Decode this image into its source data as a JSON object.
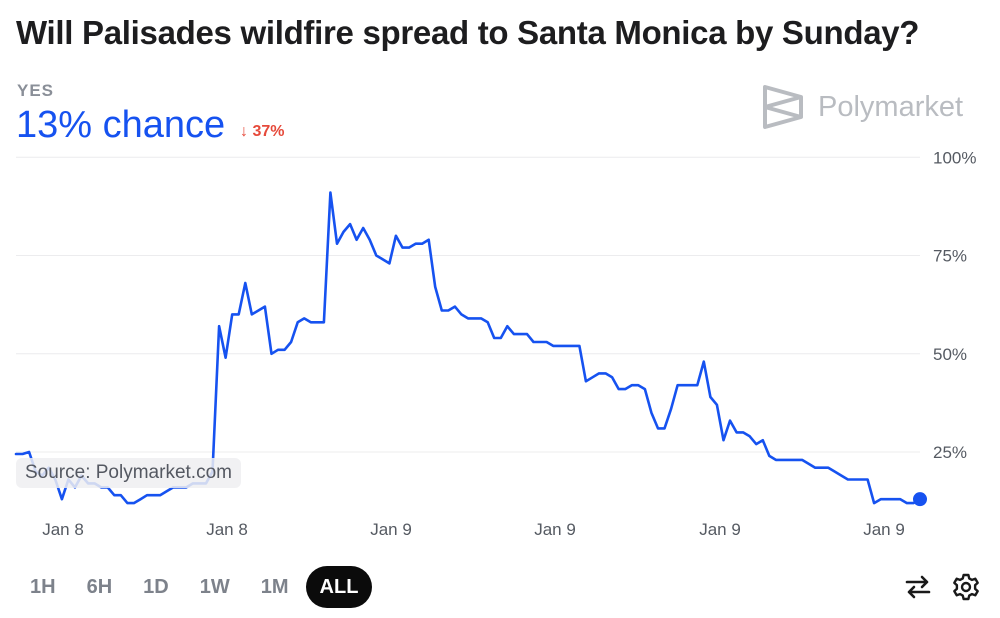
{
  "header": {
    "title": "Will Palisades wildfire spread to Santa Monica by Sunday?",
    "outcome": "YES",
    "chance": "13% chance",
    "delta": "37%",
    "brand": "Polymarket",
    "brand_icon": "polymarket-logo-icon"
  },
  "source": "Source: Polymarket.com",
  "timeframes": [
    "1H",
    "6H",
    "1D",
    "1W",
    "1M",
    "ALL"
  ],
  "active_timeframe": "ALL",
  "tools": [
    "swap-icon",
    "gear-icon"
  ],
  "colors": {
    "line": "#1652f0",
    "delta": "#e64a3b",
    "active_tab": "#0b0b0b"
  },
  "chart_data": {
    "type": "line",
    "ylim": [
      10,
      100
    ],
    "yticks": [
      25,
      50,
      75,
      100
    ],
    "ytick_labels": [
      "25%",
      "50%",
      "75%",
      "100%"
    ],
    "xtick_labels": [
      "Jan 8",
      "Jan 8",
      "Jan 9",
      "Jan 9",
      "Jan 9",
      "Jan 9"
    ],
    "grid": true,
    "end_marker": true,
    "series": [
      {
        "values": [
          24.5,
          24.5,
          25,
          20,
          19,
          21,
          18,
          13,
          18,
          16,
          19,
          17,
          17,
          16,
          16,
          14,
          14,
          12,
          12,
          13,
          14,
          14,
          14,
          15,
          16,
          16,
          16,
          17,
          17,
          17,
          20,
          57,
          49,
          60,
          60,
          68,
          60,
          61,
          62,
          50,
          51,
          51,
          53,
          58,
          59,
          58,
          58,
          58,
          91,
          78,
          81,
          83,
          79,
          82,
          79,
          75,
          74,
          73,
          80,
          77,
          77,
          78,
          78,
          79,
          67,
          61,
          61,
          62,
          60,
          59,
          59,
          59,
          58,
          54,
          54,
          57,
          55,
          55,
          55,
          53,
          53,
          53,
          52,
          52,
          52,
          52,
          52,
          43,
          44,
          45,
          45,
          44,
          41,
          41,
          42,
          42,
          41,
          35,
          31,
          31,
          36,
          42,
          42,
          42,
          42,
          48,
          39,
          37,
          28,
          33,
          30,
          30,
          29,
          27,
          28,
          24,
          23,
          23,
          23,
          23,
          23,
          22,
          21,
          21,
          21,
          20,
          19,
          18,
          18,
          18,
          18,
          12,
          13,
          13,
          13,
          13,
          12,
          12,
          13
        ]
      }
    ]
  }
}
